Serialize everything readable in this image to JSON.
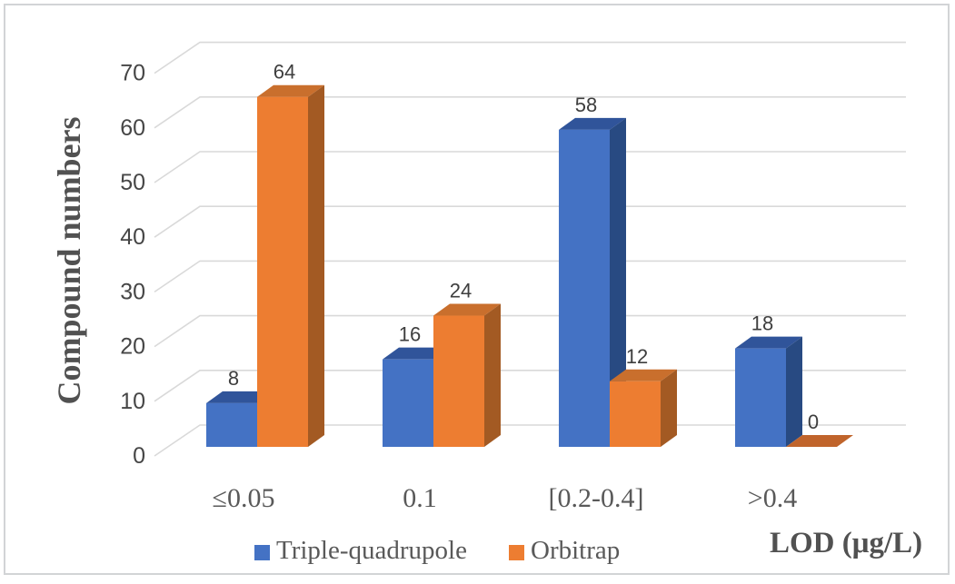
{
  "figure": {
    "background": "#FFFFFF",
    "border_color": "#D2D4D6"
  },
  "chart_data": {
    "type": "bar",
    "style": "3d-clustered-column",
    "title": "",
    "categories": [
      "≤0.05",
      "0.1",
      "[0.2-0.4]",
      ">0.4"
    ],
    "series": [
      {
        "name": "Triple-quadrupole",
        "values": [
          8,
          16,
          58,
          18
        ],
        "color_front": "#4472C4",
        "color_top": "#30549A",
        "color_side": "#284A82",
        "color_zero": "#30549A"
      },
      {
        "name": "Orbitrap",
        "values": [
          64,
          24,
          12,
          0
        ],
        "color_front": "#ED7D31",
        "color_top": "#C96F2D",
        "color_side": "#A35A23",
        "color_zero": "#C0642B"
      }
    ],
    "xlabel": "LOD (μg/L)",
    "ylabel": "Compound numbers",
    "yticks": [
      0,
      10,
      20,
      30,
      40,
      50,
      60,
      70
    ],
    "ylim": [
      0,
      70
    ],
    "grid": true,
    "gridline_color": "#D9D9D9",
    "legend_position": "bottom",
    "value_labels_shown": true,
    "text_colors": {
      "ticks": "#464646",
      "values": "#3E3E3E",
      "categories": "#595959",
      "axis_titles": "#515151",
      "legend": "#595959"
    }
  }
}
